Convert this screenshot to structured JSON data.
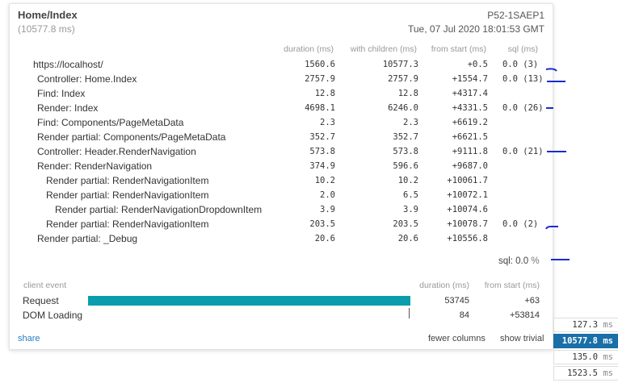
{
  "header": {
    "title": "Home/Index",
    "total": "(10577.8 ms)",
    "machine": "P52-1SAEP1",
    "date": "Tue, 07 Jul 2020 18:01:53 GMT"
  },
  "columns": {
    "duration": "duration (ms)",
    "with_children": "with children (ms)",
    "from_start": "from start (ms)",
    "sql": "sql (ms)"
  },
  "timings": [
    {
      "name": "https://localhost/",
      "depth": 0,
      "duration": "1560.6",
      "with_children": "10577.3",
      "from_start": "+0.5",
      "sql": "0.0 (3)"
    },
    {
      "name": "Controller: Home.Index",
      "depth": 1,
      "duration": "2757.9",
      "with_children": "2757.9",
      "from_start": "+1554.7",
      "sql": "0.0 (13)"
    },
    {
      "name": "Find: Index",
      "depth": 1,
      "duration": "12.8",
      "with_children": "12.8",
      "from_start": "+4317.4",
      "sql": ""
    },
    {
      "name": "Render: Index",
      "depth": 1,
      "duration": "4698.1",
      "with_children": "6246.0",
      "from_start": "+4331.5",
      "sql": "0.0 (26)"
    },
    {
      "name": "Find: Components/PageMetaData",
      "depth": 2,
      "duration": "2.3",
      "with_children": "2.3",
      "from_start": "+6619.2",
      "sql": ""
    },
    {
      "name": "Render partial: Components/PageMetaData",
      "depth": 2,
      "duration": "352.7",
      "with_children": "352.7",
      "from_start": "+6621.5",
      "sql": ""
    },
    {
      "name": "Controller: Header.RenderNavigation",
      "depth": 2,
      "duration": "573.8",
      "with_children": "573.8",
      "from_start": "+9111.8",
      "sql": "0.0 (21)"
    },
    {
      "name": "Render: RenderNavigation",
      "depth": 2,
      "duration": "374.9",
      "with_children": "596.6",
      "from_start": "+9687.0",
      "sql": ""
    },
    {
      "name": "Render partial: RenderNavigationItem",
      "depth": 3,
      "duration": "10.2",
      "with_children": "10.2",
      "from_start": "+10061.7",
      "sql": ""
    },
    {
      "name": "Render partial: RenderNavigationItem",
      "depth": 3,
      "duration": "2.0",
      "with_children": "6.5",
      "from_start": "+10072.1",
      "sql": ""
    },
    {
      "name": "Render partial: RenderNavigationDropdownItem",
      "depth": 4,
      "duration": "3.9",
      "with_children": "3.9",
      "from_start": "+10074.6",
      "sql": ""
    },
    {
      "name": "Render partial: RenderNavigationItem",
      "depth": 3,
      "duration": "203.5",
      "with_children": "203.5",
      "from_start": "+10078.7",
      "sql": "0.0 (2)"
    },
    {
      "name": "Render partial: _Debug",
      "depth": 2,
      "duration": "20.6",
      "with_children": "20.6",
      "from_start": "+10556.8",
      "sql": ""
    }
  ],
  "sql_total": {
    "label": "sql:",
    "value": "0.0",
    "unit": "%"
  },
  "client": {
    "header": "client event",
    "duration_header": "duration (ms)",
    "from_start_header": "from start (ms)",
    "events": [
      {
        "name": "Request",
        "duration": "53745",
        "from_start": "+63",
        "bar_start_fraction": 0.0,
        "bar_width_fraction": 1.0
      },
      {
        "name": "DOM Loading",
        "duration": "84",
        "from_start": "+53814",
        "bar_start_fraction": 1.0,
        "bar_width_fraction": 0.0
      }
    ],
    "bar_color": "#0b9dad"
  },
  "footer": {
    "share": "share",
    "fewer_columns": "fewer columns",
    "show_trivial": "show trivial"
  },
  "sidebar": [
    {
      "value": "127.3",
      "unit": "ms",
      "active": false
    },
    {
      "value": "10577.8",
      "unit": "ms",
      "active": true
    },
    {
      "value": "135.0",
      "unit": "ms",
      "active": false
    },
    {
      "value": "1523.5",
      "unit": "ms",
      "active": false
    }
  ],
  "colors": {
    "accent": "#1a6fa8",
    "annotation": "#1a2bcf",
    "link": "#2b7bc0"
  }
}
